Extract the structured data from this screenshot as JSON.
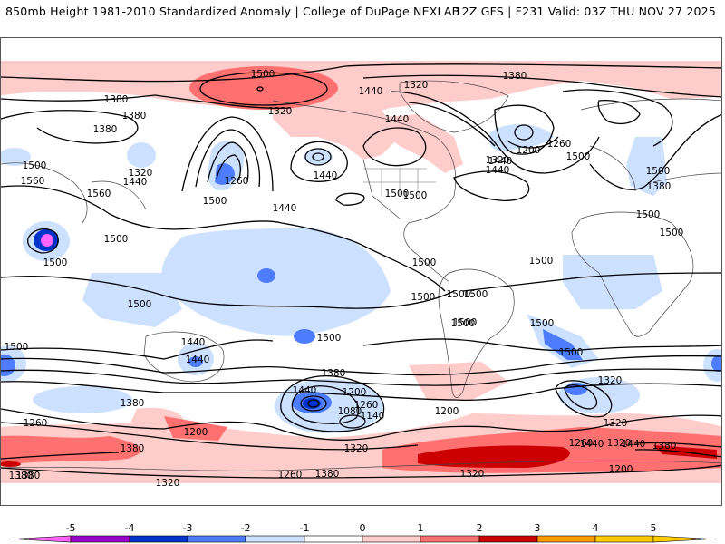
{
  "header": {
    "left": "850mb Height 1981-2010 Standardized Anomaly | College of DuPage NEXLAB",
    "right": "12Z GFS | F231 Valid: 03Z THU NOV 27 2025"
  },
  "map": {
    "field": "850mb geopotential height contours (m) with standardized anomaly shading",
    "contour_labels": [
      "1500",
      "1440",
      "1380",
      "1320",
      "1380",
      "1440",
      "1320",
      "1380",
      "1380",
      "1500",
      "1560",
      "1560",
      "1320",
      "1440",
      "1260",
      "1500",
      "1440",
      "1500",
      "1440",
      "1200",
      "1320",
      "1260",
      "1440",
      "1500",
      "1500",
      "1380",
      "1440",
      "1500",
      "1500",
      "1500",
      "1500",
      "1500",
      "1500",
      "1500",
      "1500",
      "1500",
      "1500",
      "1500",
      "1500",
      "1500",
      "1500",
      "1500",
      "1440",
      "1500",
      "1500",
      "1440",
      "1380",
      "1320",
      "1200",
      "1260",
      "1320",
      "1380",
      "1440",
      "1200",
      "1260",
      "1140",
      "1080",
      "1380",
      "1320",
      "1200",
      "1320",
      "1260",
      "1380",
      "1260",
      "1320",
      "1200",
      "1320",
      "1380",
      "1440",
      "1380",
      "1440",
      "1380"
    ]
  },
  "colorbar": {
    "ticks": [
      "-5",
      "-4",
      "-3",
      "-2",
      "-1",
      "0",
      "1",
      "2",
      "3",
      "4",
      "5"
    ],
    "colors": [
      "#ff66ff",
      "#9900cc",
      "#0033cc",
      "#4d7cff",
      "#cce0ff",
      "#ffffff",
      "#ffcccc",
      "#ff7070",
      "#cc0000",
      "#ff9900",
      "#ffcc00"
    ]
  }
}
